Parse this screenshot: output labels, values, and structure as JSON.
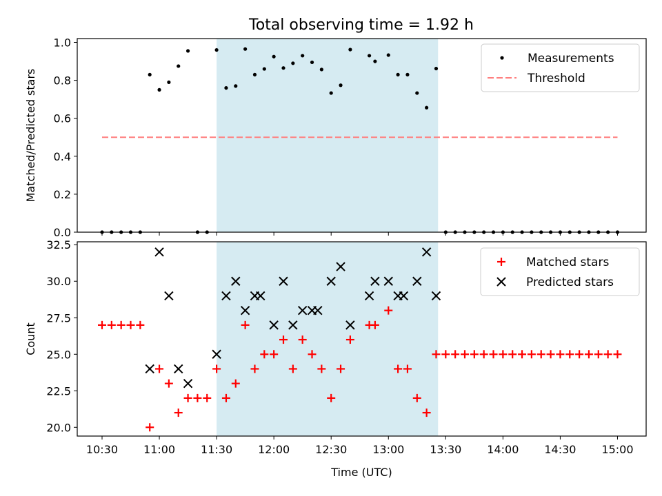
{
  "title": "Total observing time = 1.92 h",
  "chart_data": [
    {
      "type": "scatter",
      "ylabel": "Matched/Predicted stars",
      "ylim": [
        0,
        1.02
      ],
      "yticks": [
        "0.0",
        "0.2",
        "0.4",
        "0.6",
        "0.8",
        "1.0"
      ],
      "ytick_values": [
        0,
        0.2,
        0.4,
        0.6,
        0.8,
        1.0
      ],
      "legend": {
        "placement": "top-right",
        "entries": [
          "Measurements",
          "Threshold"
        ]
      },
      "observing_window": {
        "start": "11:30",
        "end": "13:26",
        "color": "#add8e6"
      },
      "series": [
        {
          "name": "Measurements",
          "color": "#000000",
          "x": [
            "10:30",
            "10:35",
            "10:40",
            "10:45",
            "10:50",
            "10:55",
            "11:00",
            "11:05",
            "11:10",
            "11:15",
            "11:20",
            "11:25",
            "11:30",
            "11:35",
            "11:40",
            "11:45",
            "11:50",
            "11:55",
            "12:00",
            "12:05",
            "12:10",
            "12:15",
            "12:20",
            "12:25",
            "12:30",
            "12:35",
            "12:40",
            "12:50",
            "12:53",
            "13:00",
            "13:05",
            "13:10",
            "13:15",
            "13:20",
            "13:25",
            "13:30",
            "13:35",
            "13:40",
            "13:45",
            "13:50",
            "13:55",
            "14:00",
            "14:05",
            "14:10",
            "14:15",
            "14:20",
            "14:25",
            "14:30",
            "14:35",
            "14:40",
            "14:45",
            "14:50",
            "14:55",
            "15:00"
          ],
          "y": [
            0,
            0,
            0,
            0,
            0,
            0.83,
            0.75,
            0.79,
            0.875,
            0.955,
            0,
            0,
            0.96,
            0.76,
            0.77,
            0.965,
            0.83,
            0.86,
            0.925,
            0.865,
            0.89,
            0.93,
            0.895,
            0.857,
            0.733,
            0.774,
            0.962,
            0.93,
            0.9,
            0.933,
            0.83,
            0.83,
            0.733,
            0.656,
            0.862,
            0,
            0,
            0,
            0,
            0,
            0,
            0,
            0,
            0,
            0,
            0,
            0,
            0,
            0,
            0,
            0,
            0,
            0,
            0
          ]
        },
        {
          "name": "Threshold",
          "color": "#ff7f7f",
          "style": "dashed",
          "x": [
            "10:30",
            "15:00"
          ],
          "y": [
            0.5,
            0.5
          ]
        }
      ]
    },
    {
      "type": "scatter",
      "xlabel": "Time (UTC)",
      "ylabel": "Count",
      "ylim": [
        19.4,
        32.7
      ],
      "yticks": [
        "20.0",
        "22.5",
        "25.0",
        "27.5",
        "30.0",
        "32.5"
      ],
      "ytick_values": [
        20,
        22.5,
        25,
        27.5,
        30,
        32.5
      ],
      "xticks": [
        "10:30",
        "11:00",
        "11:30",
        "12:00",
        "12:30",
        "13:00",
        "13:30",
        "14:00",
        "14:30",
        "15:00"
      ],
      "xlim": [
        "10:17",
        "15:15"
      ],
      "legend": {
        "placement": "top-right",
        "entries": [
          "Matched stars",
          "Predicted stars"
        ]
      },
      "observing_window": {
        "start": "11:30",
        "end": "13:26",
        "color": "#add8e6"
      },
      "series": [
        {
          "name": "Matched stars",
          "marker": "+",
          "color": "#ff0000",
          "x": [
            "10:30",
            "10:35",
            "10:40",
            "10:45",
            "10:50",
            "10:55",
            "11:00",
            "11:05",
            "11:10",
            "11:15",
            "11:20",
            "11:25",
            "11:30",
            "11:35",
            "11:40",
            "11:45",
            "11:50",
            "11:55",
            "12:00",
            "12:05",
            "12:10",
            "12:15",
            "12:20",
            "12:25",
            "12:30",
            "12:35",
            "12:40",
            "12:50",
            "12:53",
            "13:00",
            "13:05",
            "13:10",
            "13:15",
            "13:20",
            "13:25",
            "13:30",
            "13:35",
            "13:40",
            "13:45",
            "13:50",
            "13:55",
            "14:00",
            "14:05",
            "14:10",
            "14:15",
            "14:20",
            "14:25",
            "14:30",
            "14:35",
            "14:40",
            "14:45",
            "14:50",
            "14:55",
            "15:00"
          ],
          "y": [
            27,
            27,
            27,
            27,
            27,
            20,
            24,
            23,
            21,
            22,
            22,
            22,
            24,
            22,
            23,
            27,
            24,
            25,
            25,
            26,
            24,
            26,
            25,
            24,
            22,
            24,
            26,
            27,
            27,
            28,
            24,
            24,
            22,
            21,
            25,
            25,
            25,
            25,
            25,
            25,
            25,
            25,
            25,
            25,
            25,
            25,
            25,
            25,
            25,
            25,
            25,
            25,
            25,
            25
          ]
        },
        {
          "name": "Predicted stars",
          "marker": "x",
          "color": "#000000",
          "x": [
            "10:55",
            "11:00",
            "11:05",
            "11:10",
            "11:15",
            "11:30",
            "11:35",
            "11:40",
            "11:45",
            "11:50",
            "11:53",
            "12:00",
            "12:05",
            "12:10",
            "12:15",
            "12:20",
            "12:23",
            "12:30",
            "12:35",
            "12:40",
            "12:50",
            "12:53",
            "13:00",
            "13:05",
            "13:08",
            "13:15",
            "13:20",
            "13:25"
          ],
          "y": [
            24,
            32,
            29,
            24,
            23,
            25,
            29,
            30,
            28,
            29,
            29,
            27,
            30,
            27,
            28,
            28,
            28,
            30,
            31,
            27,
            29,
            30,
            30,
            29,
            29,
            30,
            32,
            29
          ]
        }
      ]
    }
  ]
}
